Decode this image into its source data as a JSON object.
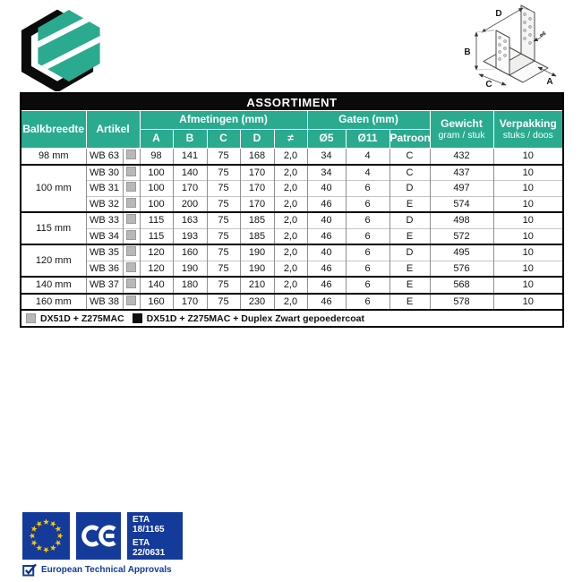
{
  "colors": {
    "teal": "#2aaa8f",
    "eu_blue": "#143a9a",
    "star_yellow": "#ffcc00",
    "swatch_gray": "#b8b8b8",
    "swatch_black": "#101010"
  },
  "icons": {
    "logo": "hexagon-logo",
    "diagram": "joist-hanger-drawing",
    "eu_flag": "eu-flag",
    "ce_mark": "CE",
    "approvals_check": "checkbox-check"
  },
  "diagram": {
    "labels": {
      "d": "D",
      "b": "B",
      "c": "C",
      "a": "A",
      "hole": "ø6"
    }
  },
  "table": {
    "title": "ASSORTIMENT",
    "headers": {
      "balkbreedte": "Balkbreedte",
      "artikel": "Artikel",
      "afmetingen": "Afmetingen (mm)",
      "gaten": "Gaten (mm)",
      "gewicht": "Gewicht",
      "gewicht_sub": "gram / stuk",
      "verpakking": "Verpakking",
      "verpakking_sub": "stuks / doos",
      "a": "A",
      "b": "B",
      "c": "C",
      "d": "D",
      "t": "≠",
      "d5": "Ø5",
      "d11": "Ø11",
      "patroon": "Patroon"
    },
    "groups": [
      {
        "balkbreedte": "98 mm",
        "rows": [
          {
            "artikel": "WB 63",
            "swatch": "gray",
            "a": "98",
            "b": "141",
            "c": "75",
            "d": "168",
            "t": "2,0",
            "d5": "34",
            "d11": "4",
            "patroon": "C",
            "gewicht": "432",
            "verpakking": "10"
          }
        ]
      },
      {
        "balkbreedte": "100 mm",
        "rows": [
          {
            "artikel": "WB 30",
            "swatch": "gray",
            "a": "100",
            "b": "140",
            "c": "75",
            "d": "170",
            "t": "2,0",
            "d5": "34",
            "d11": "4",
            "patroon": "C",
            "gewicht": "437",
            "verpakking": "10"
          },
          {
            "artikel": "WB 31",
            "swatch": "gray",
            "a": "100",
            "b": "170",
            "c": "75",
            "d": "170",
            "t": "2,0",
            "d5": "40",
            "d11": "6",
            "patroon": "D",
            "gewicht": "497",
            "verpakking": "10"
          },
          {
            "artikel": "WB 32",
            "swatch": "gray",
            "a": "100",
            "b": "200",
            "c": "75",
            "d": "170",
            "t": "2,0",
            "d5": "46",
            "d11": "6",
            "patroon": "E",
            "gewicht": "574",
            "verpakking": "10"
          }
        ]
      },
      {
        "balkbreedte": "115 mm",
        "rows": [
          {
            "artikel": "WB 33",
            "swatch": "gray",
            "a": "115",
            "b": "163",
            "c": "75",
            "d": "185",
            "t": "2,0",
            "d5": "40",
            "d11": "6",
            "patroon": "D",
            "gewicht": "498",
            "verpakking": "10"
          },
          {
            "artikel": "WB 34",
            "swatch": "gray",
            "a": "115",
            "b": "193",
            "c": "75",
            "d": "185",
            "t": "2,0",
            "d5": "46",
            "d11": "6",
            "patroon": "E",
            "gewicht": "572",
            "verpakking": "10"
          }
        ]
      },
      {
        "balkbreedte": "120 mm",
        "rows": [
          {
            "artikel": "WB 35",
            "swatch": "gray",
            "a": "120",
            "b": "160",
            "c": "75",
            "d": "190",
            "t": "2,0",
            "d5": "40",
            "d11": "6",
            "patroon": "D",
            "gewicht": "495",
            "verpakking": "10"
          },
          {
            "artikel": "WB 36",
            "swatch": "gray",
            "a": "120",
            "b": "190",
            "c": "75",
            "d": "190",
            "t": "2,0",
            "d5": "46",
            "d11": "6",
            "patroon": "E",
            "gewicht": "576",
            "verpakking": "10"
          }
        ]
      },
      {
        "balkbreedte": "140 mm",
        "rows": [
          {
            "artikel": "WB 37",
            "swatch": "gray",
            "a": "140",
            "b": "180",
            "c": "75",
            "d": "210",
            "t": "2,0",
            "d5": "46",
            "d11": "6",
            "patroon": "E",
            "gewicht": "568",
            "verpakking": "10"
          }
        ]
      },
      {
        "balkbreedte": "160 mm",
        "rows": [
          {
            "artikel": "WB 38",
            "swatch": "gray",
            "a": "160",
            "b": "170",
            "c": "75",
            "d": "230",
            "t": "2,0",
            "d5": "46",
            "d11": "6",
            "patroon": "E",
            "gewicht": "578",
            "verpakking": "10"
          }
        ]
      }
    ],
    "legend": [
      {
        "swatch": "gray",
        "label": "DX51D + Z275MAC"
      },
      {
        "swatch": "black",
        "label": "DX51D + Z275MAC + Duplex Zwart gepoedercoat"
      }
    ]
  },
  "footer": {
    "ce": "CE",
    "eta_lines": [
      "ETA 18/1165",
      "ETA 22/0631"
    ],
    "approvals": "European Technical Approvals"
  }
}
